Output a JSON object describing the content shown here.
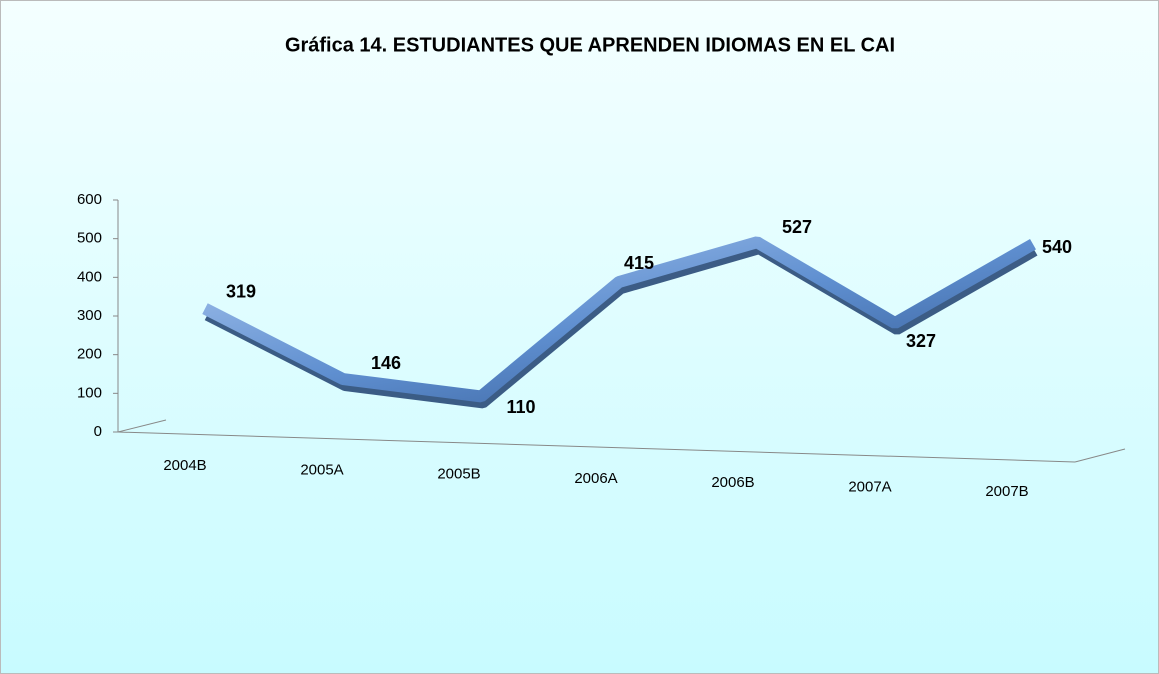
{
  "chart_data": {
    "type": "line",
    "title": "Gráfica 14. ESTUDIANTES QUE APRENDEN IDIOMAS EN EL CAI",
    "categories": [
      "2004B",
      "2005A",
      "2005B",
      "2006A",
      "2006B",
      "2007A",
      "2007B"
    ],
    "values": [
      319,
      146,
      110,
      415,
      527,
      327,
      540
    ],
    "color": "#4f7fc0",
    "ylim": [
      0,
      600
    ],
    "yticks": [
      0,
      100,
      200,
      300,
      400,
      500,
      600
    ]
  }
}
